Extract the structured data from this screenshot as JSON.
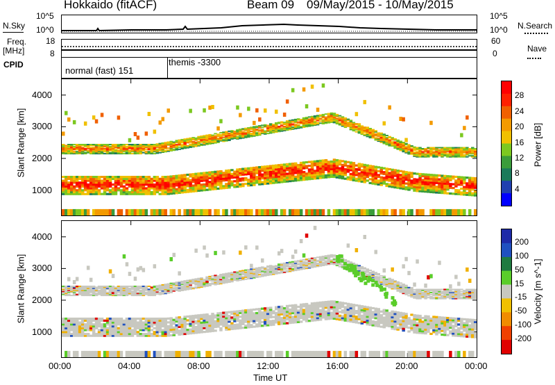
{
  "header": {
    "station": "Hokkaido (fitACF)",
    "beam": "Beam 09",
    "date_range": "09/May/2015 - 10/May/2015"
  },
  "nsky_panel": {
    "left_label": "N.Sky",
    "right_label": "N.Search",
    "left_ticks": [
      "10^5",
      "10^0"
    ],
    "right_ticks": [
      "10^5",
      "10^0"
    ]
  },
  "freq_panel": {
    "left_label_1": "Freq.",
    "left_label_2": "[MHz]",
    "left_ticks": [
      "18",
      "8"
    ],
    "right_label": "Nave",
    "right_ticks": [
      "60",
      "0"
    ]
  },
  "cpid_panel": {
    "label": "CPID",
    "segment_1": "normal (fast) 151",
    "segment_2": "themis -3300"
  },
  "x_axis": {
    "label": "Time UT",
    "ticks": [
      "00:00",
      "04:00",
      "08:00",
      "12:00",
      "16:00",
      "20:00",
      "00:00"
    ]
  },
  "chart_data": [
    {
      "type": "heatmap",
      "name": "Power",
      "xlabel": "Time UT",
      "ylabel": "Slant Range [km]",
      "x_ticks": [
        "00:00",
        "04:00",
        "08:00",
        "12:00",
        "16:00",
        "20:00",
        "00:00"
      ],
      "y_ticks": [
        1000,
        2000,
        3000,
        4000
      ],
      "ylim": [
        200,
        4500
      ],
      "colorbar": {
        "label": "Power [dB]",
        "ticks": [
          4,
          8,
          12,
          16,
          20,
          24,
          28
        ],
        "colors": [
          "#0000ff",
          "#2040b0",
          "#1a7a5a",
          "#3a9c3a",
          "#7cc820",
          "#f0c000",
          "#f39a00",
          "#f06000",
          "#ff2000",
          "#ff0000"
        ]
      }
    },
    {
      "type": "heatmap",
      "name": "Velocity",
      "xlabel": "Time UT",
      "ylabel": "Slant Range [km]",
      "x_ticks": [
        "00:00",
        "04:00",
        "08:00",
        "12:00",
        "16:00",
        "20:00",
        "00:00"
      ],
      "y_ticks": [
        1000,
        2000,
        3000,
        4000
      ],
      "ylim": [
        200,
        4500
      ],
      "colorbar": {
        "label": "Velocity [m s^-1]",
        "ticks": [
          200,
          100,
          50,
          15,
          -15,
          -50,
          -100,
          -200
        ],
        "colors": [
          "#1e2aa8",
          "#2050c0",
          "#1f7a40",
          "#5acd2a",
          "#c8c8c0",
          "#f0c000",
          "#f08c00",
          "#f04000",
          "#e00000"
        ]
      }
    }
  ]
}
